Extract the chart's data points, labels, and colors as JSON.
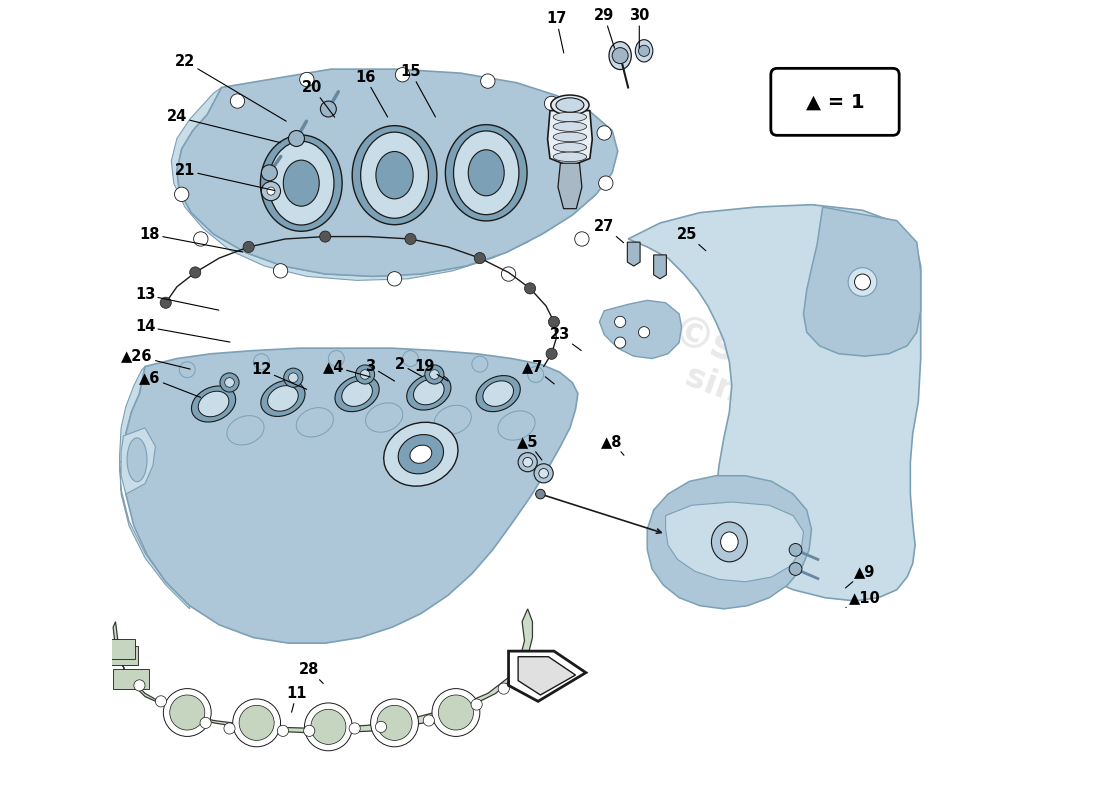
{
  "bg": "#ffffff",
  "c_main": "#adc6d8",
  "c_light": "#c8dde8",
  "c_dark": "#7ca0b5",
  "c_edge": "#1a1a1a",
  "c_gasket": "#c5d5c0",
  "c_water": "#cccccc",
  "fig_w": 11.0,
  "fig_h": 8.0,
  "labels_plain": [
    [
      22,
      0.092,
      0.075,
      0.222,
      0.152
    ],
    [
      24,
      0.082,
      0.145,
      0.215,
      0.178
    ],
    [
      21,
      0.092,
      0.212,
      0.208,
      0.238
    ],
    [
      18,
      0.048,
      0.292,
      0.168,
      0.315
    ],
    [
      20,
      0.252,
      0.108,
      0.282,
      0.148
    ],
    [
      16,
      0.318,
      0.095,
      0.348,
      0.148
    ],
    [
      15,
      0.375,
      0.088,
      0.408,
      0.148
    ],
    [
      13,
      0.042,
      0.368,
      0.138,
      0.388
    ],
    [
      14,
      0.042,
      0.408,
      0.152,
      0.428
    ],
    [
      12,
      0.188,
      0.462,
      0.248,
      0.488
    ],
    [
      3,
      0.325,
      0.458,
      0.358,
      0.478
    ],
    [
      2,
      0.362,
      0.455,
      0.392,
      0.472
    ],
    [
      19,
      0.392,
      0.458,
      0.425,
      0.478
    ],
    [
      23,
      0.562,
      0.418,
      0.592,
      0.44
    ],
    [
      27,
      0.618,
      0.282,
      0.645,
      0.305
    ],
    [
      25,
      0.722,
      0.292,
      0.748,
      0.315
    ],
    [
      17,
      0.558,
      0.022,
      0.568,
      0.068
    ],
    [
      29,
      0.618,
      0.018,
      0.632,
      0.062
    ],
    [
      30,
      0.662,
      0.018,
      0.662,
      0.062
    ],
    [
      28,
      0.248,
      0.838,
      0.268,
      0.858
    ],
    [
      11,
      0.232,
      0.868,
      0.225,
      0.895
    ]
  ],
  "labels_tri": [
    [
      6,
      0.048,
      0.472,
      0.115,
      0.498
    ],
    [
      4,
      0.278,
      0.458,
      0.328,
      0.472
    ],
    [
      26,
      0.032,
      0.445,
      0.102,
      0.462
    ],
    [
      7,
      0.528,
      0.458,
      0.558,
      0.482
    ],
    [
      5,
      0.522,
      0.552,
      0.542,
      0.578
    ],
    [
      8,
      0.628,
      0.552,
      0.645,
      0.572
    ],
    [
      9,
      0.945,
      0.715,
      0.918,
      0.738
    ],
    [
      10,
      0.945,
      0.748,
      0.918,
      0.762
    ]
  ]
}
